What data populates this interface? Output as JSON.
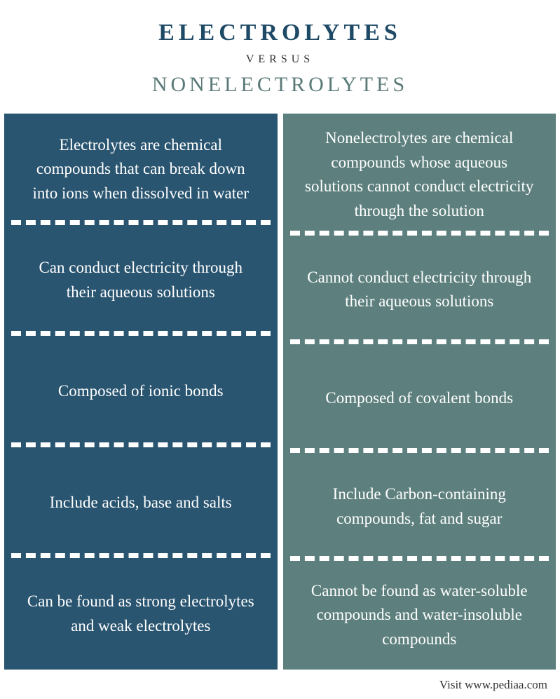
{
  "header": {
    "title_top": "ELECTROLYTES",
    "versus": "VERSUS",
    "title_bottom": "NONELECTROLYTES"
  },
  "colors": {
    "left_bg": "#2a5570",
    "right_bg": "#5d807e",
    "title_top_color": "#1e4a66",
    "title_bottom_color": "#5a7a78",
    "versus_color": "#333333",
    "text_color": "#ffffff",
    "divider_color": "#ffffff",
    "page_bg": "#ffffff"
  },
  "typography": {
    "title_fontsize": 34,
    "subtitle_fontsize": 30,
    "versus_fontsize": 16,
    "cell_fontsize": 23,
    "footer_fontsize": 17,
    "title_letter_spacing": 6,
    "font_family": "Georgia, serif"
  },
  "layout": {
    "columns": 2,
    "rows": 5,
    "column_gap": 8,
    "divider_style": "dashed",
    "divider_width": 7
  },
  "left": {
    "rows": [
      "Electrolytes are chemical compounds that can break down into ions when dissolved in water",
      "Can conduct electricity through their aqueous solutions",
      "Composed of ionic bonds",
      "Include acids, base and salts",
      "Can be found as strong electrolytes and weak electrolytes"
    ]
  },
  "right": {
    "rows": [
      "Nonelectrolytes are chemical compounds whose aqueous solutions cannot conduct electricity through the solution",
      "Cannot conduct electricity through their aqueous solutions",
      "Composed of covalent bonds",
      "Include Carbon-containing compounds, fat and sugar",
      "Cannot be found as water-soluble compounds and water-insoluble compounds"
    ]
  },
  "footer": {
    "text": "Visit www.pediaa.com"
  }
}
